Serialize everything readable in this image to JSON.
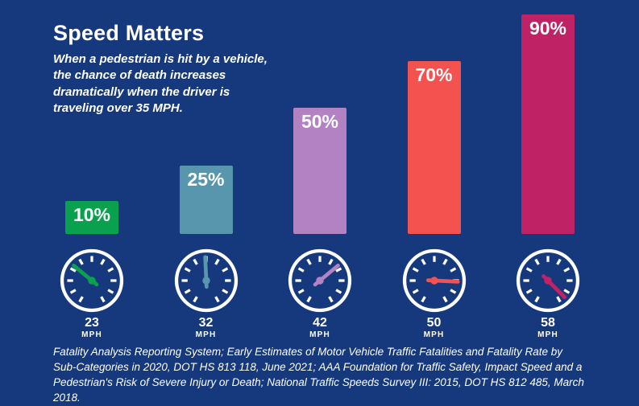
{
  "header": {
    "title": "Speed Matters",
    "subtitle": "When a pedestrian is hit by a vehicle, the chance of death increases dramatically when the driver is traveling over 35 MPH."
  },
  "chart_data": {
    "type": "bar",
    "title": "Speed Matters",
    "description": "Chance of pedestrian death by vehicle impact speed",
    "categories": [
      "23 MPH",
      "32 MPH",
      "42 MPH",
      "50 MPH",
      "58 MPH"
    ],
    "speeds_mph": [
      23,
      32,
      42,
      50,
      58
    ],
    "values": [
      10,
      25,
      50,
      70,
      90
    ],
    "value_labels": [
      "10%",
      "25%",
      "50%",
      "70%",
      "90%"
    ],
    "unit": "MPH",
    "bar_colors": [
      "#0aa14e",
      "#5796ac",
      "#b282c3",
      "#f3524e",
      "#c02365"
    ],
    "ylim": [
      0,
      100
    ],
    "grid": false,
    "legend": "none"
  },
  "footer": {
    "citation": "Fatality Analysis Reporting System; Early Estimates of Motor Vehicle Traffic Fatalities and Fatality Rate by Sub-Categories in 2020, DOT HS 813 118, June 2021; AAA Foundation for Traffic Safety, Impact Speed and a Pedestrian's Risk of Severe Injury or Death; National Traffic Speeds Survey III: 2015, DOT HS 812 485, March 2018."
  },
  "colors": {
    "background": "#16397d",
    "text": "#ffffff"
  }
}
